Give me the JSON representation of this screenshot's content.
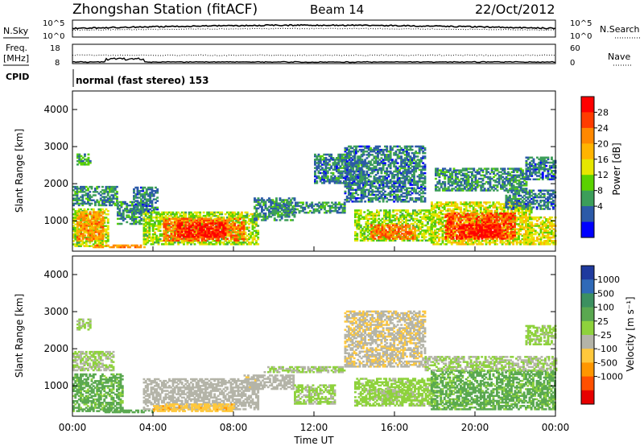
{
  "header": {
    "station": "Zhongshan Station (fitACF)",
    "beam": "Beam 14",
    "date": "22/Oct/2012"
  },
  "nsky_panel": {
    "label": "N.Sky",
    "right_label": "N.Search",
    "left_ticks": [
      "10^5",
      "10^0"
    ],
    "right_ticks": [
      "10^5",
      "10^0"
    ]
  },
  "freq_panel": {
    "label_line1": "Freq.",
    "label_line2": "[MHz]",
    "right_label": "Nave",
    "left_ticks": [
      "18",
      "8"
    ],
    "right_ticks": [
      "60",
      "0"
    ]
  },
  "cpid": {
    "label": "CPID",
    "text": "normal (fast stereo) 153"
  },
  "x_axis": {
    "label": "Time UT",
    "ticks": [
      "00:00",
      "04:00",
      "08:00",
      "12:00",
      "16:00",
      "20:00",
      "00:00"
    ]
  },
  "power_colorbar": {
    "label": "Power [dB]",
    "ticks": [
      "28",
      "24",
      "20",
      "16",
      "12",
      "8",
      "4"
    ],
    "colors": [
      "#ff0000",
      "#ff3c00",
      "#ff8800",
      "#ffb400",
      "#e6e600",
      "#5ad200",
      "#3c9e5a",
      "#2c5aa8",
      "#0000ff"
    ]
  },
  "velocity_colorbar": {
    "label": "Velocity [m s⁻¹]",
    "ticks": [
      "1000",
      "500",
      "100",
      "25",
      "-25",
      "-100",
      "-500",
      "-1000"
    ],
    "colors": [
      "#1f3a9e",
      "#2f6ab8",
      "#3c9060",
      "#5aa850",
      "#8ed23c",
      "#b4b4a8",
      "#ffc83c",
      "#ff9600",
      "#ff5000",
      "#e60000"
    ]
  },
  "chart_data": [
    {
      "type": "heatmap",
      "title": "Power",
      "xlabel": "Time UT",
      "ylabel": "Slant Range [km]",
      "xlim": [
        0,
        24
      ],
      "ylim": [
        180,
        4500
      ],
      "y_ticks": [
        1000,
        2000,
        3000,
        4000
      ],
      "colorbar": {
        "label": "Power [dB]",
        "range": [
          0,
          32
        ]
      },
      "regions": [
        {
          "t0": 0.0,
          "t1": 1.8,
          "r0": 300,
          "r1": 1300,
          "v": 14
        },
        {
          "t0": 0.2,
          "t1": 1.5,
          "r0": 450,
          "r1": 1250,
          "v": 22
        },
        {
          "t0": 0.0,
          "t1": 2.2,
          "r0": 1400,
          "r1": 1900,
          "v": 8
        },
        {
          "t0": 0.2,
          "t1": 0.9,
          "r0": 2500,
          "r1": 2800,
          "v": 10
        },
        {
          "t0": 1.0,
          "t1": 3.6,
          "r0": 270,
          "r1": 330,
          "v": 22
        },
        {
          "t0": 2.2,
          "t1": 3.4,
          "r0": 900,
          "r1": 1500,
          "v": 8
        },
        {
          "t0": 3.0,
          "t1": 4.2,
          "r0": 1200,
          "r1": 1900,
          "v": 7
        },
        {
          "t0": 3.5,
          "t1": 9.2,
          "r0": 350,
          "r1": 1250,
          "v": 14
        },
        {
          "t0": 4.5,
          "t1": 8.5,
          "r0": 450,
          "r1": 1050,
          "v": 24
        },
        {
          "t0": 5.2,
          "t1": 7.6,
          "r0": 550,
          "r1": 950,
          "v": 30
        },
        {
          "t0": 9.0,
          "t1": 11.0,
          "r0": 1000,
          "r1": 1600,
          "v": 8
        },
        {
          "t0": 10.5,
          "t1": 13.5,
          "r0": 1200,
          "r1": 1500,
          "v": 8
        },
        {
          "t0": 12.0,
          "t1": 14.5,
          "r0": 2000,
          "r1": 2800,
          "v": 7
        },
        {
          "t0": 13.5,
          "t1": 17.5,
          "r0": 1500,
          "r1": 3000,
          "v": 7
        },
        {
          "t0": 14.0,
          "t1": 18.0,
          "r0": 450,
          "r1": 1300,
          "v": 14
        },
        {
          "t0": 14.8,
          "t1": 17.0,
          "r0": 500,
          "r1": 900,
          "v": 24
        },
        {
          "t0": 17.8,
          "t1": 22.8,
          "r0": 350,
          "r1": 1500,
          "v": 16
        },
        {
          "t0": 18.5,
          "t1": 22.0,
          "r0": 500,
          "r1": 1200,
          "v": 26
        },
        {
          "t0": 19.2,
          "t1": 21.2,
          "r0": 550,
          "r1": 900,
          "v": 30
        },
        {
          "t0": 18.0,
          "t1": 22.5,
          "r0": 1800,
          "r1": 2400,
          "v": 8
        },
        {
          "t0": 21.5,
          "t1": 24.0,
          "r0": 1300,
          "r1": 1800,
          "v": 7
        },
        {
          "t0": 22.5,
          "t1": 24.0,
          "r0": 2100,
          "r1": 2700,
          "v": 7
        },
        {
          "t0": 22.5,
          "t1": 24.0,
          "r0": 350,
          "r1": 1100,
          "v": 16
        }
      ]
    },
    {
      "type": "heatmap",
      "title": "Velocity",
      "xlabel": "Time UT",
      "ylabel": "Slant Range [km]",
      "xlim": [
        0,
        24
      ],
      "ylim": [
        180,
        4500
      ],
      "y_ticks": [
        1000,
        2000,
        3000,
        4000
      ],
      "colorbar": {
        "label": "Velocity [m s⁻¹]",
        "range": [
          -1200,
          1200
        ]
      },
      "regions": [
        {
          "t0": 0.0,
          "t1": 2.5,
          "r0": 300,
          "r1": 1300,
          "v": 300
        },
        {
          "t0": 0.0,
          "t1": 2.0,
          "r0": 1400,
          "r1": 1900,
          "v": 0
        },
        {
          "t0": 0.2,
          "t1": 0.9,
          "r0": 2500,
          "r1": 2800,
          "v": 50
        },
        {
          "t0": 1.5,
          "t1": 4.0,
          "r0": 270,
          "r1": 350,
          "v": 400
        },
        {
          "t0": 3.5,
          "t1": 9.2,
          "r0": 350,
          "r1": 1200,
          "v": -100
        },
        {
          "t0": 4.0,
          "t1": 8.0,
          "r0": 300,
          "r1": 500,
          "v": -400
        },
        {
          "t0": 8.5,
          "t1": 11.0,
          "r0": 900,
          "r1": 1300,
          "v": -150
        },
        {
          "t0": 9.5,
          "t1": 13.5,
          "r0": 1350,
          "r1": 1500,
          "v": 0
        },
        {
          "t0": 11.0,
          "t1": 13.0,
          "r0": 500,
          "r1": 1000,
          "v": 50
        },
        {
          "t0": 13.5,
          "t1": 17.5,
          "r0": 1500,
          "r1": 3000,
          "v": -200
        },
        {
          "t0": 14.0,
          "t1": 18.0,
          "r0": 450,
          "r1": 1200,
          "v": 80
        },
        {
          "t0": 14.8,
          "t1": 17.0,
          "r0": 600,
          "r1": 900,
          "v": 40
        },
        {
          "t0": 17.8,
          "t1": 24.0,
          "r0": 350,
          "r1": 1400,
          "v": 300
        },
        {
          "t0": 17.5,
          "t1": 24.0,
          "r0": 1400,
          "r1": 1800,
          "v": 0
        },
        {
          "t0": 22.5,
          "t1": 24.0,
          "r0": 2100,
          "r1": 2600,
          "v": 60
        }
      ]
    }
  ]
}
